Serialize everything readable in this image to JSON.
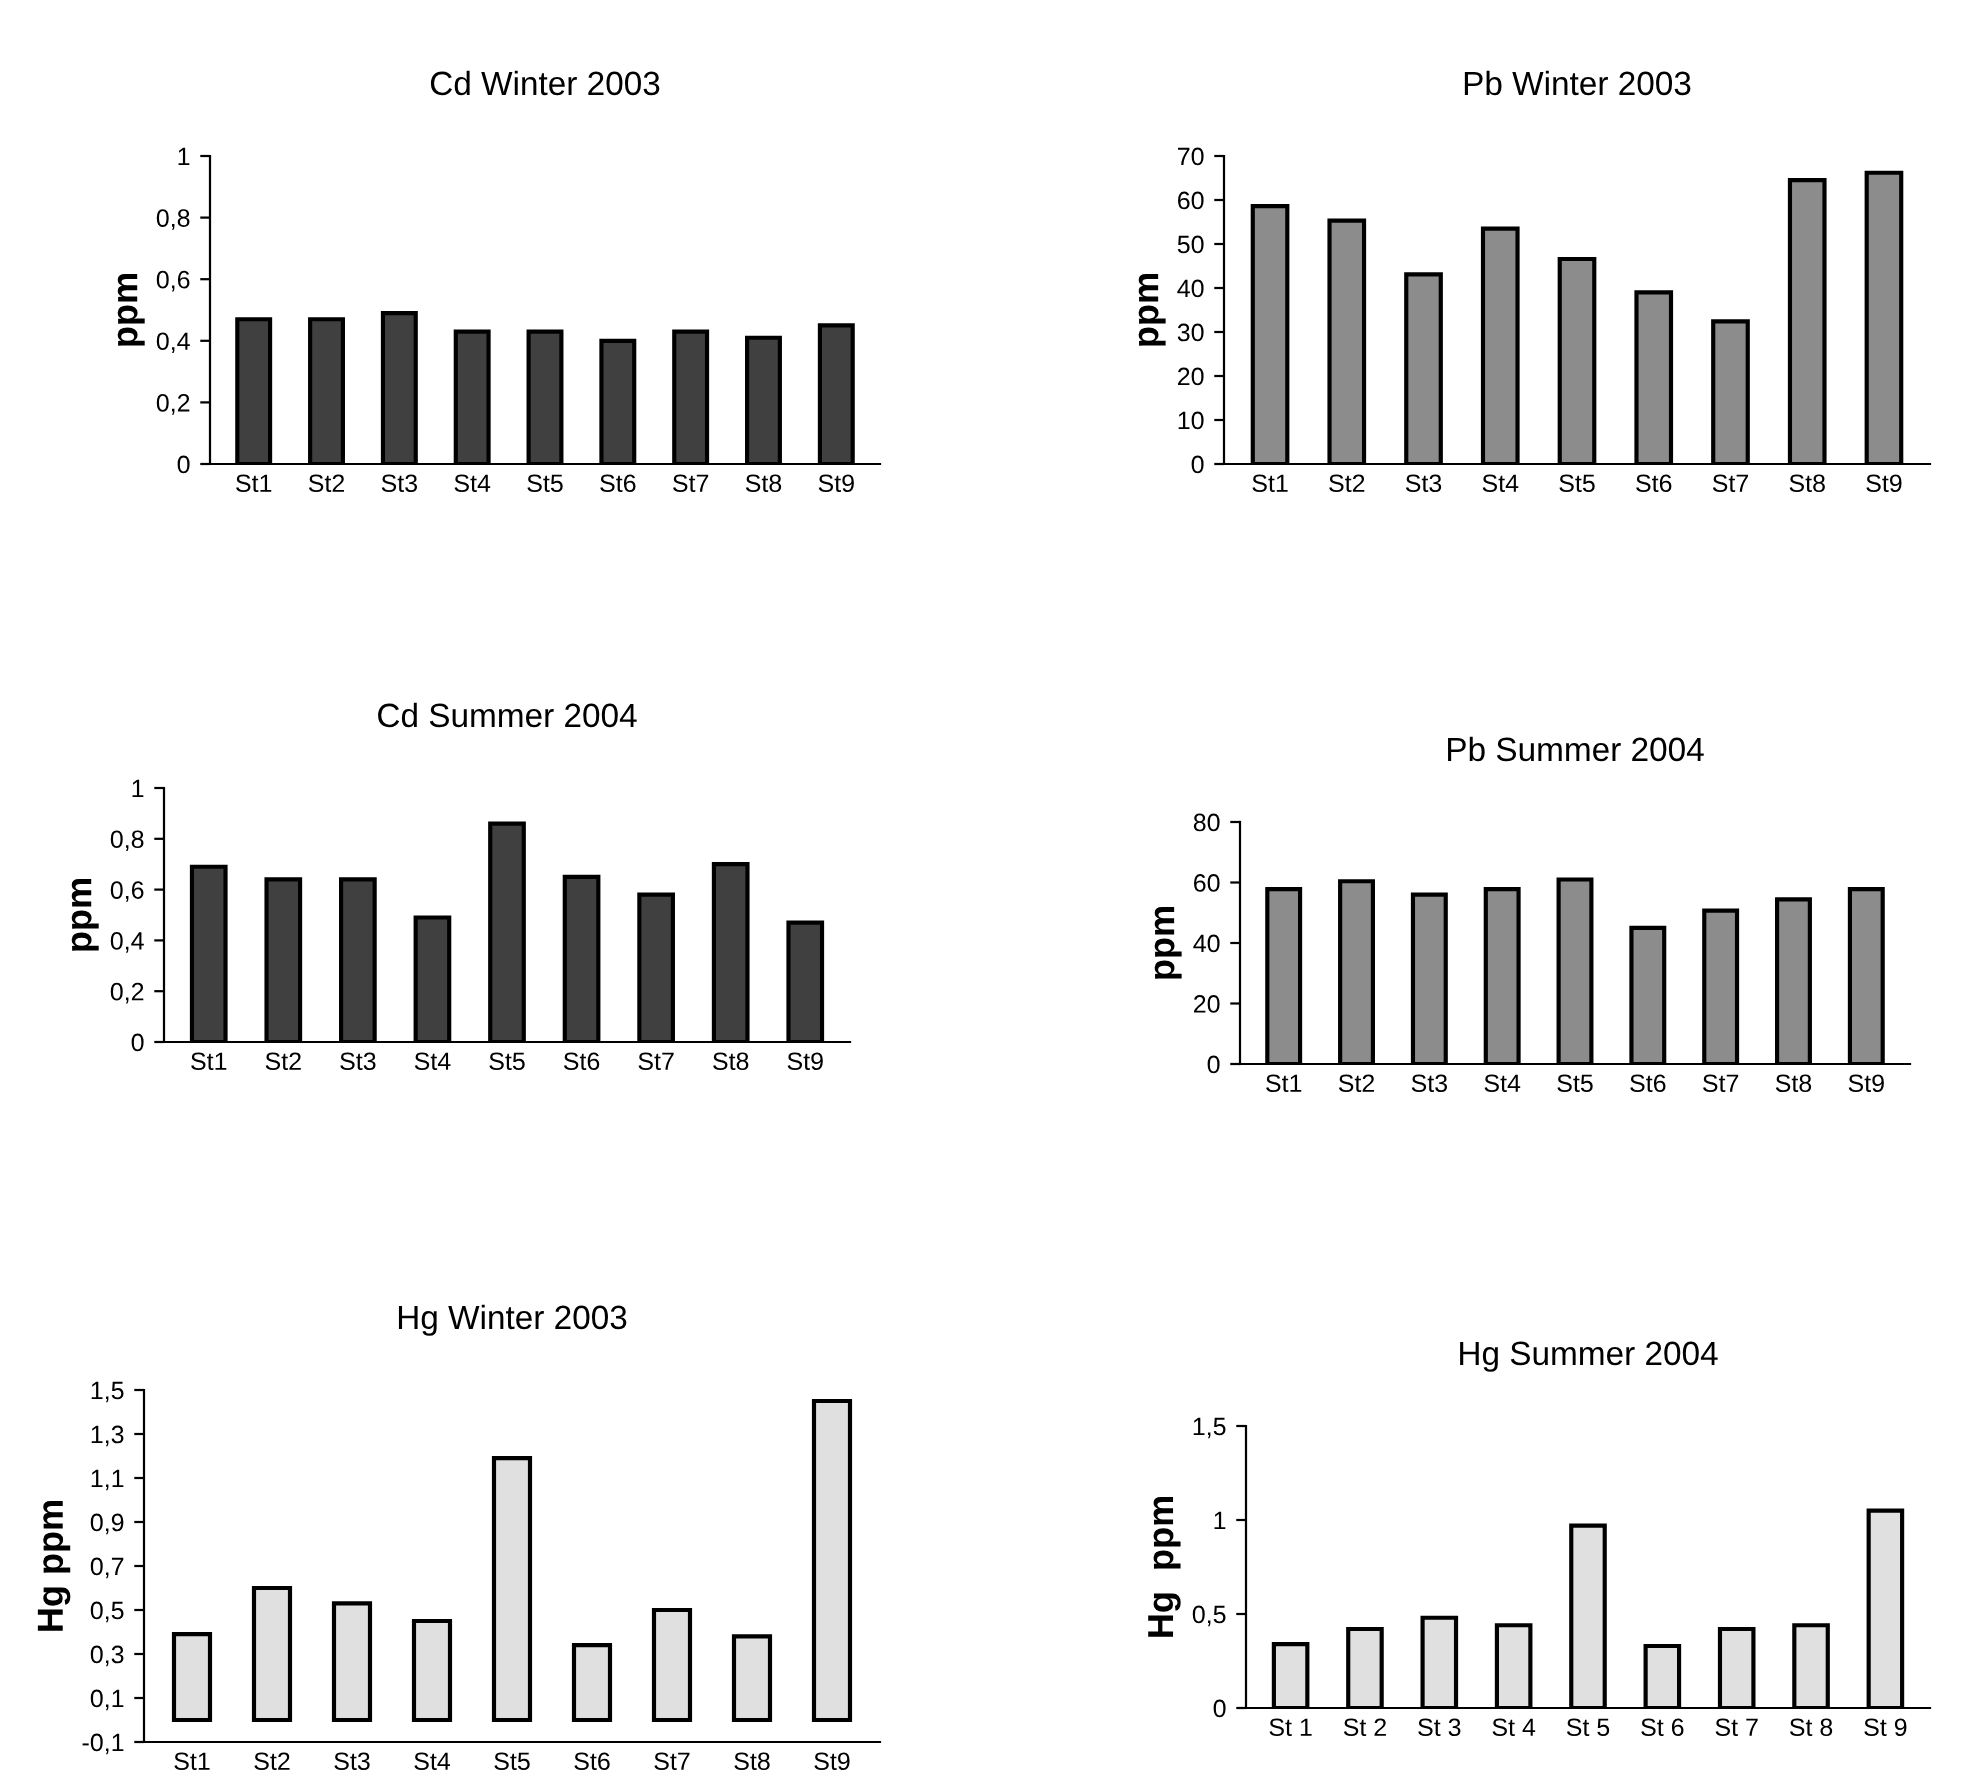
{
  "chart_data": [
    {
      "type": "bar",
      "title": "Cd Winter 2003",
      "ylabel": "ppm",
      "categories": [
        "St1",
        "St2",
        "St3",
        "St4",
        "St5",
        "St6",
        "St7",
        "St8",
        "St9"
      ],
      "series": [
        {
          "color": "#404040",
          "values": [
            0.47,
            0.47,
            0.49,
            0.43,
            0.43,
            0.4,
            0.43,
            0.41,
            0.45
          ]
        }
      ],
      "ylim": [
        0,
        1
      ],
      "yticks": [
        0,
        {
          "value": 0.2,
          "label": "0,2"
        },
        {
          "value": 0.4,
          "label": "0,4"
        },
        {
          "value": 0.6,
          "label": "0,6"
        },
        {
          "value": 0.8,
          "label": "0,8"
        },
        1
      ],
      "grid": false,
      "legend": false
    },
    {
      "type": "bar",
      "title": "Pb Winter 2003",
      "ylabel": "ppm",
      "categories": [
        "St1",
        "St2",
        "St3",
        "St4",
        "St5",
        "St6",
        "St7",
        "St8",
        "St9"
      ],
      "series": [
        {
          "color": "#8c8c8c",
          "values": [
            58.6,
            55.3,
            43.1,
            53.5,
            46.6,
            39,
            32.4,
            64.5,
            66.2
          ]
        }
      ],
      "ylim": [
        0,
        70
      ],
      "yticks": [
        0,
        10,
        20,
        30,
        40,
        50,
        60,
        70
      ],
      "grid": false,
      "legend": false
    },
    {
      "type": "bar",
      "title": "Cd Summer 2004",
      "ylabel": "ppm",
      "categories": [
        "St1",
        "St2",
        "St3",
        "St4",
        "St5",
        "St6",
        "St7",
        "St8",
        "St9"
      ],
      "series": [
        {
          "color": "#404040",
          "values": [
            0.69,
            0.64,
            0.64,
            0.49,
            0.86,
            0.65,
            0.58,
            0.7,
            0.47
          ]
        }
      ],
      "ylim": [
        0,
        1
      ],
      "yticks": [
        0,
        {
          "value": 0.2,
          "label": "0,2"
        },
        {
          "value": 0.4,
          "label": "0,4"
        },
        {
          "value": 0.6,
          "label": "0,6"
        },
        {
          "value": 0.8,
          "label": "0,8"
        },
        1
      ],
      "grid": false,
      "legend": false
    },
    {
      "type": "bar",
      "title": "Pb Summer 2004",
      "ylabel": "ppm",
      "categories": [
        "St1",
        "St2",
        "St3",
        "St4",
        "St5",
        "St6",
        "St7",
        "St8",
        "St9"
      ],
      "series": [
        {
          "color": "#8c8c8c",
          "values": [
            57.8,
            60.4,
            56,
            57.8,
            61,
            45,
            50.7,
            54.4,
            57.8
          ]
        }
      ],
      "ylim": [
        0,
        80
      ],
      "yticks": [
        0,
        20,
        40,
        60,
        80
      ],
      "grid": false,
      "legend": false
    },
    {
      "type": "bar",
      "title": "Hg Winter 2003",
      "ylabel": "Hg ppm",
      "categories": [
        "St1",
        "St2",
        "St3",
        "St4",
        "St5",
        "St6",
        "St7",
        "St8",
        "St9"
      ],
      "series": [
        {
          "color": "#e0e0e0",
          "values": [
            0.39,
            0.6,
            0.53,
            0.45,
            1.19,
            0.34,
            0.5,
            0.38,
            1.45
          ]
        }
      ],
      "ylim": [
        -0.1,
        1.5
      ],
      "yticks": [
        {
          "value": -0.1,
          "label": "-0,1"
        },
        {
          "value": 0.1,
          "label": "0,1"
        },
        {
          "value": 0.3,
          "label": "0,3"
        },
        {
          "value": 0.5,
          "label": "0,5"
        },
        {
          "value": 0.7,
          "label": "0,7"
        },
        {
          "value": 0.9,
          "label": "0,9"
        },
        {
          "value": 1.1,
          "label": "1,1"
        },
        {
          "value": 1.3,
          "label": "1,3"
        },
        {
          "value": 1.5,
          "label": "1,5"
        }
      ],
      "grid": false,
      "legend": false
    },
    {
      "type": "bar",
      "title": "Hg Summer 2004",
      "ylabel": "Hg  ppm",
      "categories": [
        "St 1",
        "St 2",
        "St 3",
        "St 4",
        "St 5",
        "St 6",
        "St 7",
        "St 8",
        "St 9"
      ],
      "series": [
        {
          "color": "#e0e0e0",
          "values": [
            0.34,
            0.42,
            0.48,
            0.44,
            0.97,
            0.33,
            0.42,
            0.44,
            1.05
          ]
        }
      ],
      "ylim": [
        0,
        1.5
      ],
      "yticks": [
        0,
        {
          "value": 0.5,
          "label": "0,5"
        },
        1,
        {
          "value": 1.5,
          "label": "1,5"
        }
      ],
      "grid": false,
      "legend": false
    }
  ]
}
